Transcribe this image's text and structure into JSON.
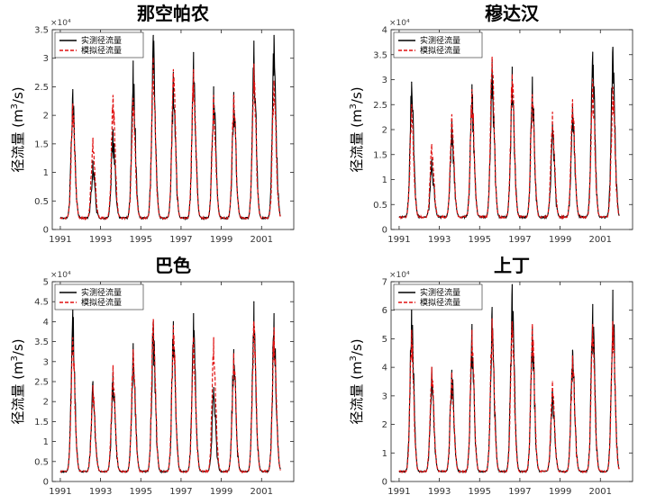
{
  "legend": {
    "observed": "实测径流量",
    "simulated": "模拟径流量"
  },
  "colors": {
    "observed": "#000000",
    "simulated": "#e01010"
  },
  "chart_data": [
    {
      "type": "line",
      "title": "那空帕农",
      "ylabel": "径流量 (m³/s)",
      "ylabel_parts": [
        "径流量 (m",
        "3",
        "/s)"
      ],
      "exponent_label": "×10⁴",
      "ylim": [
        0,
        3.5
      ],
      "yticks": [
        0,
        0.5,
        1,
        1.5,
        2,
        2.5,
        3,
        3.5
      ],
      "ytick_labels": [
        "0",
        "0.5",
        "1",
        "1.5",
        "2",
        "2.5",
        "3",
        "3.5"
      ],
      "xlim": [
        1990.6,
        2002.6
      ],
      "xticks": [
        1991,
        1993,
        1995,
        1997,
        1999,
        2001
      ],
      "xtick_labels": [
        "1991",
        "1993",
        "1995",
        "1997",
        "1999",
        "2001"
      ],
      "legend_position": "top-left",
      "series": [
        {
          "name": "实测径流量",
          "style": "solid",
          "peaks": [
            2.45,
            1.2,
            1.75,
            2.95,
            3.4,
            2.75,
            3.1,
            2.5,
            2.4,
            3.3,
            3.4
          ],
          "baseline": 0.2
        },
        {
          "name": "模拟径流量",
          "style": "dashed",
          "peaks": [
            2.2,
            1.6,
            2.35,
            2.3,
            3.0,
            2.8,
            2.8,
            2.35,
            2.35,
            2.9,
            2.6
          ],
          "baseline": 0.2
        }
      ]
    },
    {
      "type": "line",
      "title": "穆达汉",
      "ylabel": "径流量 (m³/s)",
      "ylabel_parts": [
        "径流量 (m",
        "3",
        "/s)"
      ],
      "exponent_label": "×10⁴",
      "ylim": [
        0,
        4
      ],
      "yticks": [
        0,
        0.5,
        1,
        1.5,
        2,
        2.5,
        3,
        3.5,
        4
      ],
      "ytick_labels": [
        "0",
        "0.5",
        "1",
        "1.5",
        "2",
        "2.5",
        "3",
        "3.5",
        "4"
      ],
      "xlim": [
        1990.6,
        2002.6
      ],
      "xticks": [
        1991,
        1993,
        1995,
        1997,
        1999,
        2001
      ],
      "xtick_labels": [
        "1991",
        "1993",
        "1995",
        "1997",
        "1999",
        "2001"
      ],
      "legend_position": "top-left",
      "series": [
        {
          "name": "实测径流量",
          "style": "solid",
          "peaks": [
            2.95,
            1.4,
            2.15,
            2.9,
            3.4,
            3.25,
            3.05,
            2.1,
            2.5,
            3.55,
            3.65
          ],
          "baseline": 0.25
        },
        {
          "name": "模拟径流量",
          "style": "dashed",
          "peaks": [
            2.5,
            1.7,
            2.3,
            2.8,
            3.45,
            3.1,
            2.7,
            2.35,
            2.6,
            3.0,
            2.85
          ],
          "baseline": 0.25
        }
      ]
    },
    {
      "type": "line",
      "title": "巴色",
      "ylabel": "径流量 (m³/s)",
      "ylabel_parts": [
        "径流量 (m",
        "3",
        "/s)"
      ],
      "exponent_label": "×10⁴",
      "ylim": [
        0,
        5
      ],
      "yticks": [
        0,
        0.5,
        1,
        1.5,
        2,
        2.5,
        3,
        3.5,
        4,
        4.5,
        5
      ],
      "ytick_labels": [
        "0",
        "0.5",
        "1",
        "1.5",
        "2",
        "2.5",
        "3",
        "3.5",
        "4",
        "4.5",
        "5"
      ],
      "xlim": [
        1990.6,
        2002.6
      ],
      "xticks": [
        1991,
        1993,
        1995,
        1997,
        1999,
        2001
      ],
      "xtick_labels": [
        "1991",
        "1993",
        "1995",
        "1997",
        "1999",
        "2001"
      ],
      "legend_position": "top-left",
      "series": [
        {
          "name": "实测径流量",
          "style": "solid",
          "peaks": [
            4.35,
            2.5,
            2.75,
            3.45,
            4.0,
            4.0,
            4.2,
            2.35,
            3.3,
            4.5,
            4.2
          ],
          "baseline": 0.25
        },
        {
          "name": "模拟径流量",
          "style": "dashed",
          "peaks": [
            3.6,
            2.4,
            2.9,
            3.3,
            4.05,
            3.9,
            3.6,
            3.6,
            3.2,
            4.0,
            3.85
          ],
          "baseline": 0.25
        }
      ]
    },
    {
      "type": "line",
      "title": "上丁",
      "ylabel": "径流量 (m³/s)",
      "ylabel_parts": [
        "径流量 (m",
        "3",
        "/s)"
      ],
      "exponent_label": "×10⁴",
      "ylim": [
        0,
        7
      ],
      "yticks": [
        0,
        1,
        2,
        3,
        4,
        5,
        6,
        7
      ],
      "ytick_labels": [
        "0",
        "1",
        "2",
        "3",
        "4",
        "5",
        "6",
        "7"
      ],
      "xlim": [
        1990.6,
        2002.6
      ],
      "xticks": [
        1991,
        1993,
        1995,
        1997,
        1999,
        2001
      ],
      "xtick_labels": [
        "1991",
        "1993",
        "1995",
        "1997",
        "1999",
        "2001"
      ],
      "legend_position": "top-left",
      "series": [
        {
          "name": "实测径流量",
          "style": "solid",
          "peaks": [
            6.3,
            4.0,
            3.9,
            5.5,
            6.1,
            6.9,
            5.4,
            3.2,
            4.6,
            6.2,
            6.7
          ],
          "baseline": 0.35
        },
        {
          "name": "模拟径流量",
          "style": "dashed",
          "peaks": [
            5.3,
            4.0,
            3.8,
            5.3,
            5.7,
            5.6,
            5.5,
            3.5,
            4.4,
            5.5,
            5.6
          ],
          "baseline": 0.35
        }
      ]
    }
  ]
}
